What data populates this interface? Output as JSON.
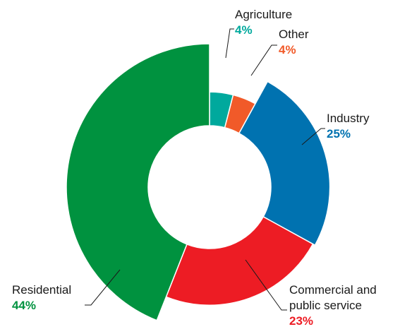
{
  "chart_data": {
    "type": "pie",
    "title": "",
    "categories": [
      "Agriculture",
      "Other",
      "Industry",
      "Commercial and public service",
      "Residential"
    ],
    "values": [
      4,
      4,
      25,
      23,
      44
    ],
    "value_labels": [
      "4%",
      "4%",
      "25%",
      "23%",
      "44%"
    ],
    "colors": [
      "#00a99d",
      "#f15a29",
      "#0072b0",
      "#ed1c24",
      "#00923f"
    ],
    "label_lines": {
      "Commercial and public service": [
        "Commercial and",
        "public service"
      ]
    },
    "donut": true,
    "legend": "none"
  }
}
